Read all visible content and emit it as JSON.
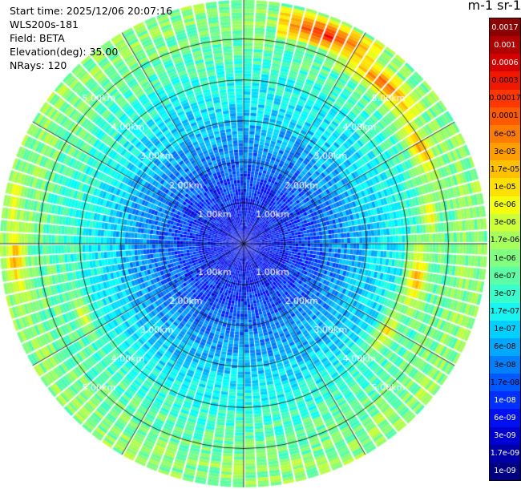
{
  "header": {
    "start_time": "Start time: 2025/12/06 20:07:16",
    "instrument": "WLS200s-181",
    "field": "Field: BETA",
    "elevation": "Elevation(deg): 35.00",
    "nrays": "NRays: 120"
  },
  "colorbar": {
    "title": "m-1 sr-1",
    "labels": [
      "0.0017",
      "0.001",
      "0.0006",
      "0.0003",
      "0.00017",
      "0.0001",
      "6e-05",
      "3e-05",
      "1.7e-05",
      "1e-05",
      "6e-06",
      "3e-06",
      "1.7e-06",
      "1e-06",
      "6e-07",
      "3e-07",
      "1.7e-07",
      "1e-07",
      "6e-08",
      "3e-08",
      "1.7e-08",
      "1e-08",
      "6e-09",
      "3e-09",
      "1.7e-09",
      "1e-09"
    ],
    "colors": [
      "#8b0000",
      "#b00000",
      "#d40000",
      "#f01800",
      "#ff3800",
      "#ff5a00",
      "#ff7c00",
      "#ff9e00",
      "#ffc000",
      "#ffe000",
      "#f4ff10",
      "#ccff38",
      "#a6ff5c",
      "#80ff80",
      "#5cffa6",
      "#38ffcc",
      "#18f4f0",
      "#00d0ff",
      "#00a8ff",
      "#0080ff",
      "#0058ff",
      "#0030ff",
      "#0010f0",
      "#0000d0",
      "#0000a8",
      "#000080"
    ]
  },
  "chart_data": {
    "type": "heatmap",
    "projection": "polar-ppi",
    "field": "BETA",
    "units": "m-1 sr-1",
    "elevation_deg": 35.0,
    "n_rays": 120,
    "scale": "log",
    "color_range": [
      1e-09,
      0.0017
    ],
    "range_rings_km": [
      1.0,
      2.0,
      3.0,
      4.0,
      5.0
    ],
    "ring_labels": [
      "1.00km",
      "2.00km",
      "3.00km",
      "4.00km",
      "5.00km"
    ],
    "max_range_km": 5.95,
    "spokes_deg": [
      0,
      30,
      60,
      90,
      120,
      150
    ],
    "profile": [
      {
        "range_km": 0.5,
        "beta": 2e-09
      },
      {
        "range_km": 1.5,
        "beta": 5e-09
      },
      {
        "range_km": 2.5,
        "beta": 2e-08
      },
      {
        "range_km": 3.5,
        "beta": 8e-08
      },
      {
        "range_km": 4.5,
        "beta": 3e-07
      },
      {
        "range_km": 5.5,
        "beta": 8e-07
      }
    ],
    "high_backscatter_band": [
      {
        "azimuth_deg": 20,
        "range_km": 5.5,
        "beta": 0.0003
      },
      {
        "azimuth_deg": 40,
        "range_km": 5.2,
        "beta": 0.0001
      },
      {
        "azimuth_deg": 60,
        "range_km": 4.9,
        "beta": 3e-05
      },
      {
        "azimuth_deg": 80,
        "range_km": 4.6,
        "beta": 1e-05
      },
      {
        "azimuth_deg": 100,
        "range_km": 4.3,
        "beta": 3e-05
      },
      {
        "azimuth_deg": 120,
        "range_km": 4.1,
        "beta": 1e-05
      },
      {
        "azimuth_deg": 245,
        "range_km": 4.3,
        "beta": 6e-06
      },
      {
        "azimuth_deg": 265,
        "range_km": 5.6,
        "beta": 3e-05
      },
      {
        "azimuth_deg": 280,
        "range_km": 5.7,
        "beta": 1e-05
      }
    ]
  }
}
